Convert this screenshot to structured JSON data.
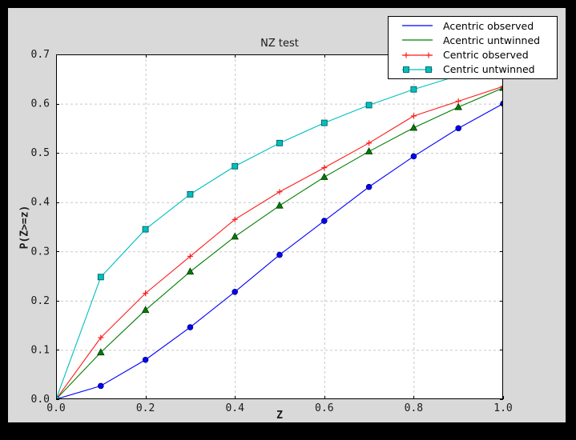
{
  "window": {
    "frame_color": "#000000",
    "figure_bg": "#d9d9d9",
    "plot_bg": "#ffffff",
    "grid_color": "#c8c8c8",
    "text_color": "#1a1a1a"
  },
  "chart_data": {
    "type": "line",
    "title": "NZ test",
    "xlabel": "Z",
    "ylabel": "P(Z>=z)",
    "xlim": [
      0.0,
      1.0
    ],
    "ylim": [
      0.0,
      0.7
    ],
    "grid": "dashed",
    "legend_position": "upper right",
    "x_ticks": [
      0.0,
      0.2,
      0.4,
      0.6,
      0.8,
      1.0
    ],
    "x_tick_labels": [
      "0.0",
      "0.2",
      "0.4",
      "0.6",
      "0.8",
      "1.0"
    ],
    "y_ticks": [
      0.0,
      0.1,
      0.2,
      0.3,
      0.4,
      0.5,
      0.6,
      0.7
    ],
    "y_tick_labels": [
      "0.0",
      "0.1",
      "0.2",
      "0.3",
      "0.4",
      "0.5",
      "0.6",
      "0.7"
    ],
    "x": [
      0.0,
      0.1,
      0.2,
      0.3,
      0.4,
      0.5,
      0.6,
      0.7,
      0.8,
      0.9,
      1.0
    ],
    "series": [
      {
        "name": "Acentric observed",
        "color": "#0000ff",
        "marker": "circle",
        "marker_edge": "#000066",
        "values": [
          0.0,
          0.027,
          0.08,
          0.146,
          0.218,
          0.293,
          0.362,
          0.431,
          0.493,
          0.55,
          0.6
        ]
      },
      {
        "name": "Acentric untwinned",
        "color": "#007d00",
        "marker": "triangle",
        "marker_edge": "#003300",
        "values": [
          0.0,
          0.095,
          0.181,
          0.259,
          0.33,
          0.393,
          0.451,
          0.503,
          0.551,
          0.593,
          0.632
        ]
      },
      {
        "name": "Centric observed",
        "color": "#ff1a1a",
        "marker": "plus",
        "marker_edge": "#ff1a1a",
        "values": [
          0.0,
          0.125,
          0.215,
          0.29,
          0.365,
          0.421,
          0.47,
          0.52,
          0.575,
          0.605,
          0.635
        ]
      },
      {
        "name": "Centric untwinned",
        "color": "#00bfbf",
        "marker": "square",
        "marker_edge": "#005f5f",
        "values": [
          0.0,
          0.248,
          0.345,
          0.416,
          0.473,
          0.52,
          0.561,
          0.597,
          0.629,
          0.657,
          0.683
        ]
      }
    ]
  }
}
